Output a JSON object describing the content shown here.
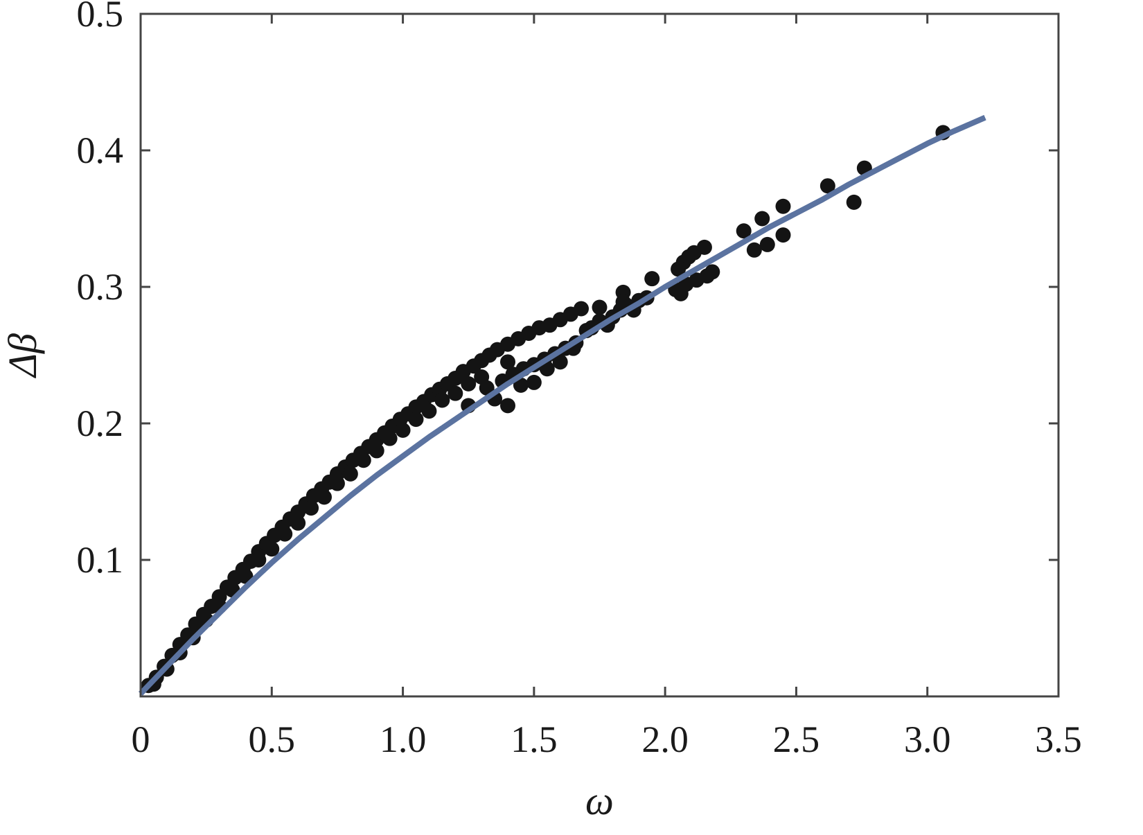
{
  "chart_data": {
    "type": "scatter",
    "title": "",
    "xlabel": "ω",
    "ylabel": "Δβ",
    "xlim": [
      0,
      3.5
    ],
    "ylim": [
      0,
      0.5
    ],
    "grid": false,
    "x_ticks": [
      "0",
      "0.5",
      "1.0",
      "1.5",
      "2.0",
      "2.5",
      "3.0",
      "3.5"
    ],
    "x_tick_values": [
      0,
      0.5,
      1.0,
      1.5,
      2.0,
      2.5,
      3.0,
      3.5
    ],
    "y_ticks": [
      "0.1",
      "0.2",
      "0.3",
      "0.4",
      "0.5"
    ],
    "y_tick_values": [
      0.1,
      0.2,
      0.3,
      0.4,
      0.5
    ],
    "colors": {
      "points": "#141414",
      "fit_line": "#5b73a0",
      "axes": "#444444"
    },
    "series": [
      {
        "kind": "points",
        "points": [
          [
            0.03,
            0.008
          ],
          [
            0.06,
            0.014
          ],
          [
            0.09,
            0.022
          ],
          [
            0.12,
            0.03
          ],
          [
            0.15,
            0.038
          ],
          [
            0.18,
            0.045
          ],
          [
            0.21,
            0.053
          ],
          [
            0.24,
            0.06
          ],
          [
            0.27,
            0.066
          ],
          [
            0.3,
            0.073
          ],
          [
            0.33,
            0.08
          ],
          [
            0.36,
            0.087
          ],
          [
            0.39,
            0.093
          ],
          [
            0.42,
            0.099
          ],
          [
            0.45,
            0.106
          ],
          [
            0.48,
            0.112
          ],
          [
            0.51,
            0.118
          ],
          [
            0.54,
            0.124
          ],
          [
            0.57,
            0.13
          ],
          [
            0.6,
            0.135
          ],
          [
            0.63,
            0.141
          ],
          [
            0.66,
            0.147
          ],
          [
            0.69,
            0.152
          ],
          [
            0.72,
            0.157
          ],
          [
            0.75,
            0.163
          ],
          [
            0.78,
            0.168
          ],
          [
            0.81,
            0.173
          ],
          [
            0.84,
            0.178
          ],
          [
            0.87,
            0.183
          ],
          [
            0.9,
            0.188
          ],
          [
            0.93,
            0.193
          ],
          [
            0.96,
            0.198
          ],
          [
            0.99,
            0.203
          ],
          [
            1.02,
            0.207
          ],
          [
            1.05,
            0.212
          ],
          [
            1.08,
            0.216
          ],
          [
            1.11,
            0.221
          ],
          [
            1.14,
            0.225
          ],
          [
            1.17,
            0.229
          ],
          [
            1.2,
            0.233
          ],
          [
            0.1,
            0.02
          ],
          [
            0.2,
            0.043
          ],
          [
            0.3,
            0.066
          ],
          [
            0.4,
            0.088
          ],
          [
            0.5,
            0.108
          ],
          [
            0.6,
            0.127
          ],
          [
            0.7,
            0.146
          ],
          [
            0.8,
            0.163
          ],
          [
            0.9,
            0.18
          ],
          [
            1.0,
            0.195
          ],
          [
            1.1,
            0.209
          ],
          [
            1.2,
            0.222
          ],
          [
            1.3,
            0.234
          ],
          [
            1.4,
            0.245
          ],
          [
            0.05,
            0.009
          ],
          [
            0.15,
            0.032
          ],
          [
            0.25,
            0.056
          ],
          [
            0.35,
            0.078
          ],
          [
            0.45,
            0.1
          ],
          [
            0.55,
            0.119
          ],
          [
            0.65,
            0.138
          ],
          [
            0.75,
            0.156
          ],
          [
            0.85,
            0.173
          ],
          [
            0.95,
            0.189
          ],
          [
            1.05,
            0.203
          ],
          [
            1.15,
            0.217
          ],
          [
            1.25,
            0.229
          ],
          [
            1.23,
            0.238
          ],
          [
            1.27,
            0.242
          ],
          [
            1.3,
            0.246
          ],
          [
            1.33,
            0.25
          ],
          [
            1.36,
            0.254
          ],
          [
            1.4,
            0.258
          ],
          [
            1.44,
            0.262
          ],
          [
            1.48,
            0.266
          ],
          [
            1.52,
            0.27
          ],
          [
            1.56,
            0.272
          ],
          [
            1.6,
            0.276
          ],
          [
            1.64,
            0.28
          ],
          [
            1.68,
            0.284
          ],
          [
            1.32,
            0.226
          ],
          [
            1.38,
            0.231
          ],
          [
            1.42,
            0.236
          ],
          [
            1.46,
            0.24
          ],
          [
            1.5,
            0.243
          ],
          [
            1.54,
            0.247
          ],
          [
            1.58,
            0.251
          ],
          [
            1.62,
            0.255
          ],
          [
            1.66,
            0.259
          ],
          [
            1.25,
            0.213
          ],
          [
            1.35,
            0.218
          ],
          [
            1.4,
            0.213
          ],
          [
            1.45,
            0.228
          ],
          [
            1.5,
            0.23
          ],
          [
            1.55,
            0.24
          ],
          [
            1.6,
            0.245
          ],
          [
            1.65,
            0.255
          ],
          [
            1.7,
            0.268
          ],
          [
            1.72,
            0.27
          ],
          [
            1.75,
            0.275
          ],
          [
            1.78,
            0.272
          ],
          [
            1.8,
            0.278
          ],
          [
            1.83,
            0.283
          ],
          [
            1.85,
            0.287
          ],
          [
            1.88,
            0.283
          ],
          [
            1.9,
            0.29
          ],
          [
            1.93,
            0.292
          ],
          [
            1.75,
            0.285
          ],
          [
            1.84,
            0.296
          ],
          [
            1.84,
            0.289
          ],
          [
            1.95,
            0.306
          ],
          [
            2.05,
            0.313
          ],
          [
            2.07,
            0.318
          ],
          [
            2.09,
            0.322
          ],
          [
            2.11,
            0.325
          ],
          [
            2.15,
            0.329
          ],
          [
            2.04,
            0.298
          ],
          [
            2.06,
            0.295
          ],
          [
            2.08,
            0.302
          ],
          [
            2.12,
            0.305
          ],
          [
            2.16,
            0.308
          ],
          [
            2.18,
            0.311
          ],
          [
            2.3,
            0.341
          ],
          [
            2.34,
            0.327
          ],
          [
            2.37,
            0.35
          ],
          [
            2.39,
            0.331
          ],
          [
            2.45,
            0.359
          ],
          [
            2.45,
            0.338
          ],
          [
            2.62,
            0.374
          ],
          [
            2.72,
            0.362
          ],
          [
            2.76,
            0.387
          ],
          [
            3.06,
            0.413
          ]
        ]
      },
      {
        "kind": "fit_line",
        "points": [
          [
            0,
            0.002
          ],
          [
            0.1,
            0.022
          ],
          [
            0.2,
            0.042
          ],
          [
            0.3,
            0.061
          ],
          [
            0.4,
            0.08
          ],
          [
            0.5,
            0.098
          ],
          [
            0.6,
            0.115
          ],
          [
            0.7,
            0.131
          ],
          [
            0.8,
            0.147
          ],
          [
            0.9,
            0.162
          ],
          [
            1.0,
            0.176
          ],
          [
            1.1,
            0.19
          ],
          [
            1.2,
            0.203
          ],
          [
            1.3,
            0.216
          ],
          [
            1.4,
            0.229
          ],
          [
            1.5,
            0.241
          ],
          [
            1.6,
            0.253
          ],
          [
            1.7,
            0.265
          ],
          [
            1.8,
            0.277
          ],
          [
            1.9,
            0.288
          ],
          [
            2.0,
            0.3
          ],
          [
            2.1,
            0.311
          ],
          [
            2.2,
            0.322
          ],
          [
            2.3,
            0.333
          ],
          [
            2.4,
            0.344
          ],
          [
            2.5,
            0.354
          ],
          [
            2.6,
            0.364
          ],
          [
            2.7,
            0.375
          ],
          [
            2.8,
            0.385
          ],
          [
            2.9,
            0.395
          ],
          [
            3.0,
            0.405
          ],
          [
            3.1,
            0.414
          ],
          [
            3.22,
            0.424
          ]
        ]
      }
    ]
  }
}
